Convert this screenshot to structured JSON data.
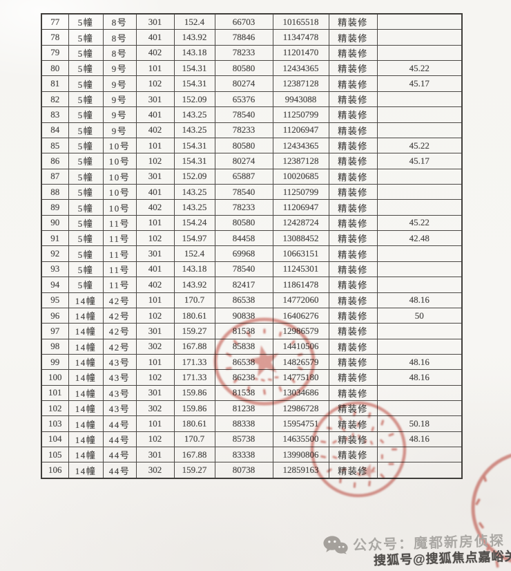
{
  "page": {
    "kind": "scanned new-home price filing table, rows 77-106, no header row visible"
  },
  "table": {
    "column_keys": [
      "index",
      "building",
      "unit",
      "room",
      "area_sqm",
      "unit_price",
      "total_price",
      "decoration",
      "extra_value"
    ],
    "rows": [
      [
        "77",
        "5幢",
        "8号",
        "301",
        "152.4",
        "66703",
        "10165518",
        "精装修",
        ""
      ],
      [
        "78",
        "5幢",
        "8号",
        "401",
        "143.92",
        "78846",
        "11347478",
        "精装修",
        ""
      ],
      [
        "79",
        "5幢",
        "8号",
        "402",
        "143.18",
        "78233",
        "11201470",
        "精装修",
        ""
      ],
      [
        "80",
        "5幢",
        "9号",
        "101",
        "154.31",
        "80580",
        "12434365",
        "精装修",
        "45.22"
      ],
      [
        "81",
        "5幢",
        "9号",
        "102",
        "154.31",
        "80274",
        "12387128",
        "精装修",
        "45.17"
      ],
      [
        "82",
        "5幢",
        "9号",
        "301",
        "152.09",
        "65376",
        "9943088",
        "精装修",
        ""
      ],
      [
        "83",
        "5幢",
        "9号",
        "401",
        "143.25",
        "78540",
        "11250799",
        "精装修",
        ""
      ],
      [
        "84",
        "5幢",
        "9号",
        "402",
        "143.25",
        "78233",
        "11206947",
        "精装修",
        ""
      ],
      [
        "85",
        "5幢",
        "10号",
        "101",
        "154.31",
        "80580",
        "12434365",
        "精装修",
        "45.22"
      ],
      [
        "86",
        "5幢",
        "10号",
        "102",
        "154.31",
        "80274",
        "12387128",
        "精装修",
        "45.17"
      ],
      [
        "87",
        "5幢",
        "10号",
        "301",
        "152.09",
        "65887",
        "10020685",
        "精装修",
        ""
      ],
      [
        "88",
        "5幢",
        "10号",
        "401",
        "143.25",
        "78540",
        "11250799",
        "精装修",
        ""
      ],
      [
        "89",
        "5幢",
        "10号",
        "402",
        "143.25",
        "78233",
        "11206947",
        "精装修",
        ""
      ],
      [
        "90",
        "5幢",
        "11号",
        "101",
        "154.24",
        "80580",
        "12428724",
        "精装修",
        "45.22"
      ],
      [
        "91",
        "5幢",
        "11号",
        "102",
        "154.97",
        "84458",
        "13088452",
        "精装修",
        "42.48"
      ],
      [
        "92",
        "5幢",
        "11号",
        "301",
        "152.4",
        "69968",
        "10663151",
        "精装修",
        ""
      ],
      [
        "93",
        "5幢",
        "11号",
        "401",
        "143.18",
        "78540",
        "11245301",
        "精装修",
        ""
      ],
      [
        "94",
        "5幢",
        "11号",
        "402",
        "143.92",
        "82417",
        "11861478",
        "精装修",
        ""
      ],
      [
        "95",
        "14幢",
        "42号",
        "101",
        "170.7",
        "86538",
        "14772060",
        "精装修",
        "48.16"
      ],
      [
        "96",
        "14幢",
        "42号",
        "102",
        "180.61",
        "90838",
        "16406276",
        "精装修",
        "50"
      ],
      [
        "97",
        "14幢",
        "42号",
        "301",
        "159.27",
        "81538",
        "12986579",
        "精装修",
        ""
      ],
      [
        "98",
        "14幢",
        "42号",
        "302",
        "167.88",
        "85838",
        "14410506",
        "精装修",
        ""
      ],
      [
        "99",
        "14幢",
        "43号",
        "101",
        "171.33",
        "86538",
        "14826579",
        "精装修",
        "48.16"
      ],
      [
        "100",
        "14幢",
        "43号",
        "102",
        "171.33",
        "86238",
        "14775180",
        "精装修",
        "48.16"
      ],
      [
        "101",
        "14幢",
        "43号",
        "301",
        "159.86",
        "81538",
        "13034686",
        "精装修",
        ""
      ],
      [
        "102",
        "14幢",
        "43号",
        "302",
        "159.86",
        "81238",
        "12986728",
        "精装修",
        ""
      ],
      [
        "103",
        "14幢",
        "44号",
        "101",
        "180.61",
        "88338",
        "15954751",
        "精装修",
        "50.18"
      ],
      [
        "104",
        "14幢",
        "44号",
        "102",
        "170.7",
        "85738",
        "14635500",
        "精装修",
        "48.16"
      ],
      [
        "105",
        "14幢",
        "44号",
        "301",
        "167.88",
        "83338",
        "13990806",
        "精装修",
        ""
      ],
      [
        "106",
        "14幢",
        "44号",
        "302",
        "159.27",
        "80738",
        "12859163",
        "精装修",
        ""
      ]
    ]
  },
  "stamps": [
    {
      "name": "round-seal-with-star",
      "description": "red circular official seal with five-pointed star, surrounding text illegible",
      "legible_text": false
    },
    {
      "name": "round-seal-dense",
      "description": "red circular seal with dense illegible characters",
      "legible_text": false
    },
    {
      "name": "partial-seal-right-edge",
      "description": "red seal partially visible at bottom-right page edge",
      "legible_text": false
    }
  ],
  "watermark": {
    "wechat_account_label": "公众号：魔都新房侦探",
    "sohu_account_label": "搜狐号@搜狐焦点嘉峪关站"
  },
  "colors": {
    "paper": "#f6f5f2",
    "table_border": "#3f3d3a",
    "text": "#4a4947",
    "stamp_red": "#c2463a",
    "watermark_gray": "#aaa8a4",
    "watermark_dark": "#504d4a"
  }
}
